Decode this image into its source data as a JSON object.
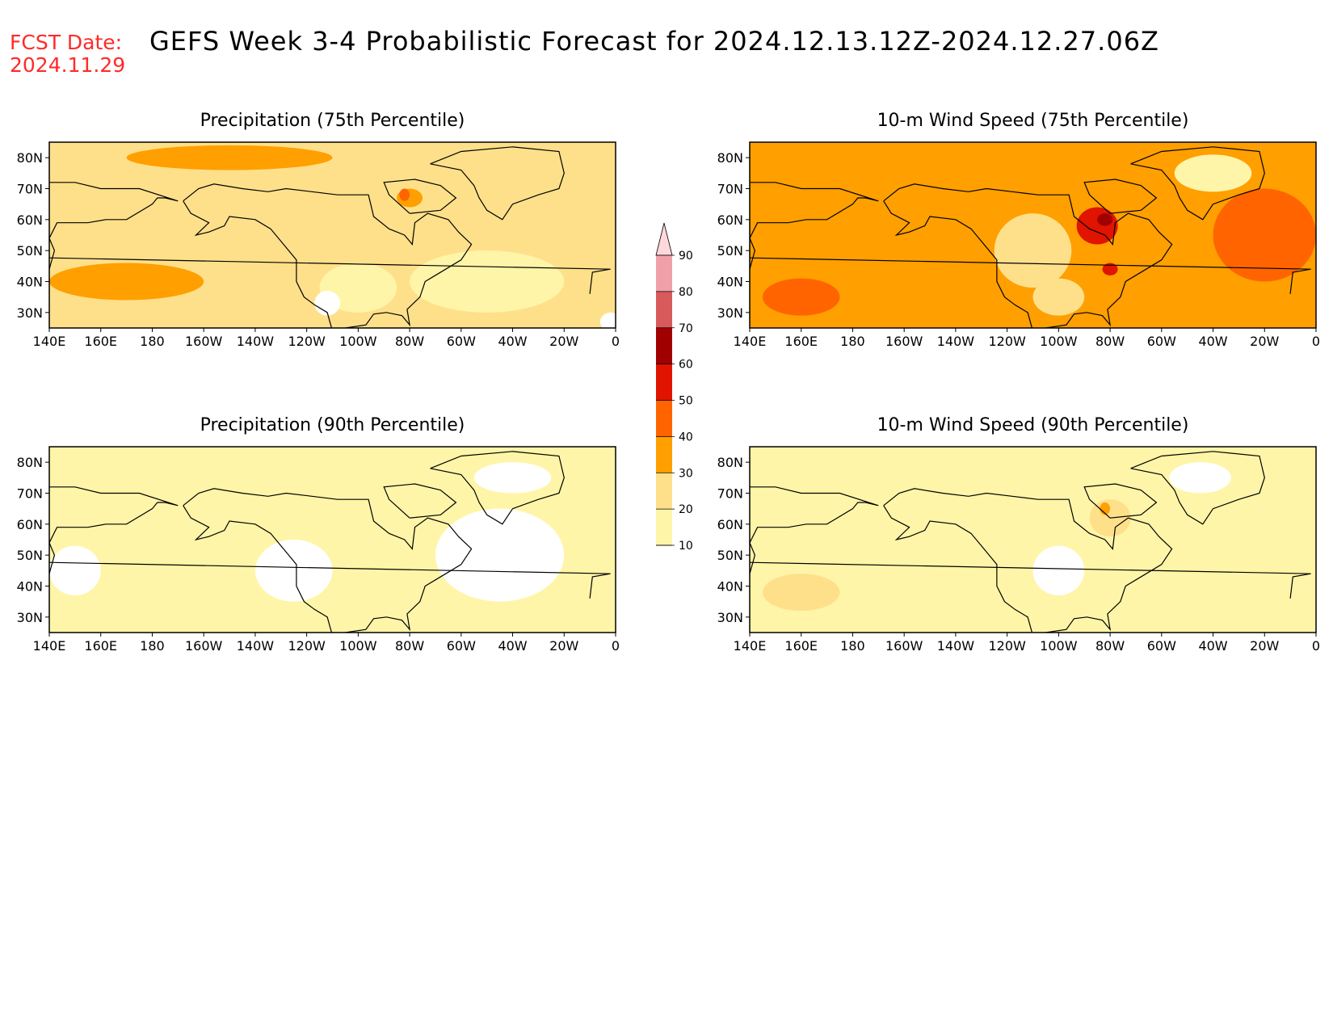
{
  "header": {
    "fcst_label": "FCST Date:",
    "fcst_date": "2024.11.29",
    "title": "GEFS Week 3-4 Probabilistic Forecast for 2024.12.13.12Z-2024.12.27.06Z"
  },
  "axes": {
    "lat_ticks": [
      "80N",
      "70N",
      "60N",
      "50N",
      "40N",
      "30N"
    ],
    "lon_ticks": [
      "140E",
      "160E",
      "180",
      "160W",
      "140W",
      "120W",
      "100W",
      "80W",
      "60W",
      "40W",
      "20W",
      "0"
    ]
  },
  "colorbar": {
    "levels": [
      "10",
      "20",
      "30",
      "40",
      "50",
      "60",
      "70",
      "80",
      "90"
    ],
    "colors": [
      "#ffffff",
      "#fff5a8",
      "#ffe08a",
      "#ff9f00",
      "#ff6400",
      "#e01400",
      "#a00000",
      "#d85a5a",
      "#f0a0a8",
      "#ffd8dc"
    ]
  },
  "panels": [
    {
      "id": "precip75",
      "title": "Precipitation (75th Percentile)",
      "base_color": "#ffe08a",
      "patches": [
        {
          "fill": "#ff9f00",
          "lon": -150,
          "lat": 80,
          "rx": 40,
          "ry": 4
        },
        {
          "fill": "#ff9f00",
          "lon": 170,
          "lat": 40,
          "rx": 30,
          "ry": 6
        },
        {
          "fill": "#ff9f00",
          "lon": -80,
          "lat": 67,
          "rx": 5,
          "ry": 3
        },
        {
          "fill": "#ff6400",
          "lon": -82,
          "lat": 68,
          "rx": 2,
          "ry": 2
        },
        {
          "fill": "#fff5a8",
          "lon": -50,
          "lat": 40,
          "rx": 30,
          "ry": 10
        },
        {
          "fill": "#fff5a8",
          "lon": -100,
          "lat": 38,
          "rx": 15,
          "ry": 8
        },
        {
          "fill": "#ffffff",
          "lon": -112,
          "lat": 33,
          "rx": 5,
          "ry": 4
        },
        {
          "fill": "#ffffff",
          "lon": -2,
          "lat": 27,
          "rx": 4,
          "ry": 3
        }
      ]
    },
    {
      "id": "wind75",
      "title": "10-m Wind Speed (75th Percentile)",
      "base_color": "#ff9f00",
      "patches": [
        {
          "fill": "#ff6400",
          "lon": 160,
          "lat": 35,
          "rx": 15,
          "ry": 6
        },
        {
          "fill": "#ff6400",
          "lon": -20,
          "lat": 55,
          "rx": 20,
          "ry": 15
        },
        {
          "fill": "#ffe08a",
          "lon": -110,
          "lat": 50,
          "rx": 15,
          "ry": 12
        },
        {
          "fill": "#fff5a8",
          "lon": -40,
          "lat": 75,
          "rx": 15,
          "ry": 6
        },
        {
          "fill": "#ffe08a",
          "lon": -100,
          "lat": 35,
          "rx": 10,
          "ry": 6
        },
        {
          "fill": "#e01400",
          "lon": -85,
          "lat": 58,
          "rx": 8,
          "ry": 6
        },
        {
          "fill": "#a00000",
          "lon": -82,
          "lat": 60,
          "rx": 3,
          "ry": 2
        },
        {
          "fill": "#e01400",
          "lon": -80,
          "lat": 44,
          "rx": 3,
          "ry": 2
        }
      ]
    },
    {
      "id": "precip90",
      "title": "Precipitation (90th Percentile)",
      "base_color": "#fff5a8",
      "patches": [
        {
          "fill": "#ffffff",
          "lon": -45,
          "lat": 50,
          "rx": 25,
          "ry": 15
        },
        {
          "fill": "#ffffff",
          "lon": -125,
          "lat": 45,
          "rx": 15,
          "ry": 10
        },
        {
          "fill": "#ffffff",
          "lon": 150,
          "lat": 45,
          "rx": 10,
          "ry": 8
        },
        {
          "fill": "#ffffff",
          "lon": -40,
          "lat": 75,
          "rx": 15,
          "ry": 5
        }
      ]
    },
    {
      "id": "wind90",
      "title": "10-m Wind Speed (90th Percentile)",
      "base_color": "#fff5a8",
      "patches": [
        {
          "fill": "#ffe08a",
          "lon": 160,
          "lat": 38,
          "rx": 15,
          "ry": 6
        },
        {
          "fill": "#ffe08a",
          "lon": -80,
          "lat": 62,
          "rx": 8,
          "ry": 6
        },
        {
          "fill": "#ff9f00",
          "lon": -82,
          "lat": 65,
          "rx": 2,
          "ry": 2
        },
        {
          "fill": "#ffffff",
          "lon": -45,
          "lat": 75,
          "rx": 12,
          "ry": 5
        },
        {
          "fill": "#ffffff",
          "lon": -100,
          "lat": 45,
          "rx": 10,
          "ry": 8
        }
      ]
    }
  ]
}
